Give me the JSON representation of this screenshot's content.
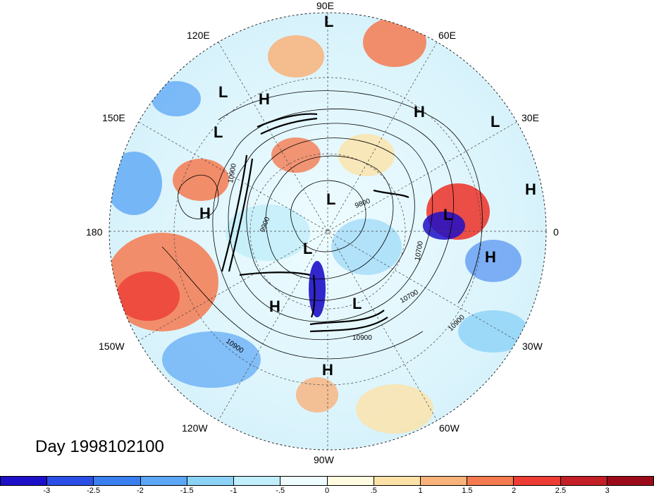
{
  "title": "Day 1998102100",
  "longitude_labels": [
    "90E",
    "60E",
    "30E",
    "0",
    "30W",
    "60W",
    "90W",
    "120W",
    "150W",
    "180",
    "150E",
    "120E"
  ],
  "contour_labels": [
    "10900",
    "9900",
    "10700",
    "10900",
    "10700",
    "10900",
    "9800",
    "10900"
  ],
  "pressure_centers": [
    "L",
    "H",
    "L",
    "L",
    "H",
    "L",
    "H",
    "H",
    "L",
    "L",
    "L",
    "H",
    "L",
    "H",
    "H"
  ],
  "colorbar": {
    "ticks": [
      "-3",
      "-2.5",
      "-2",
      "-1.5",
      "-1",
      "-.5",
      "0",
      ".5",
      "1",
      "1.5",
      "2",
      "2.5",
      "3"
    ],
    "colors": [
      "#1e0fc8",
      "#2b4fe6",
      "#3a7ff0",
      "#5ba6f5",
      "#8cd2f7",
      "#c0eefa",
      "#eefcff",
      "#fffbe0",
      "#fde2a8",
      "#f9b27a",
      "#f47a50",
      "#ec3c33",
      "#c41e26",
      "#9b0a19"
    ]
  }
}
